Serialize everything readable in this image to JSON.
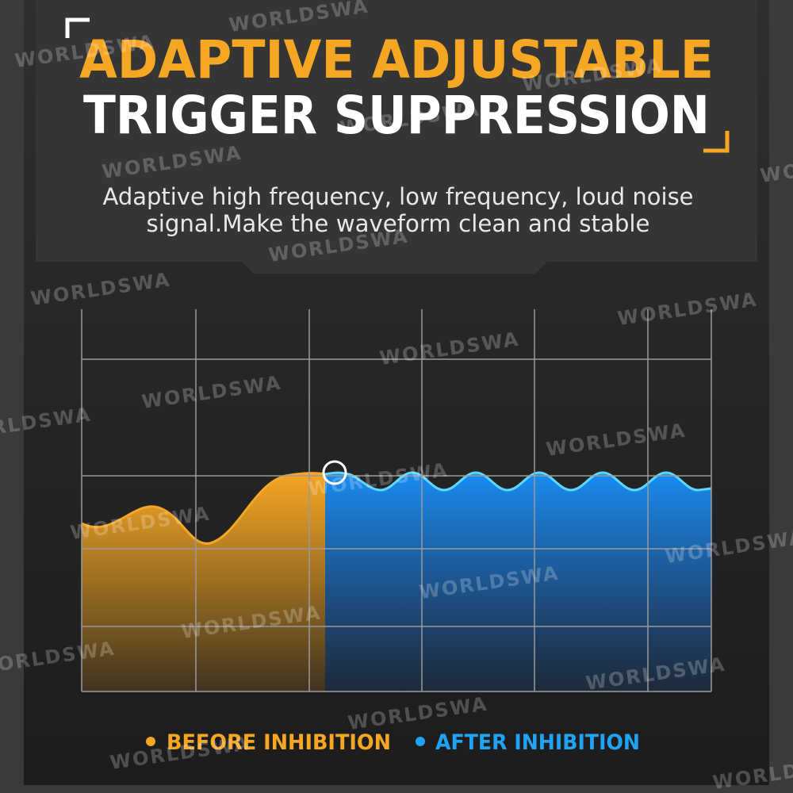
{
  "header": {
    "title_line1": "ADAPTIVE ADJUSTABLE",
    "title_line2": "TRIGGER SUPPRESSION",
    "subtitle_line1": "Adaptive high frequency, low frequency, loud noise",
    "subtitle_line2": "signal.Make the waveform clean and stable"
  },
  "legend": [
    {
      "label": "BEFORE INHIBITION"
    },
    {
      "label": "AFTER INHIBITION"
    }
  ],
  "watermark": "WORLDSWA"
}
